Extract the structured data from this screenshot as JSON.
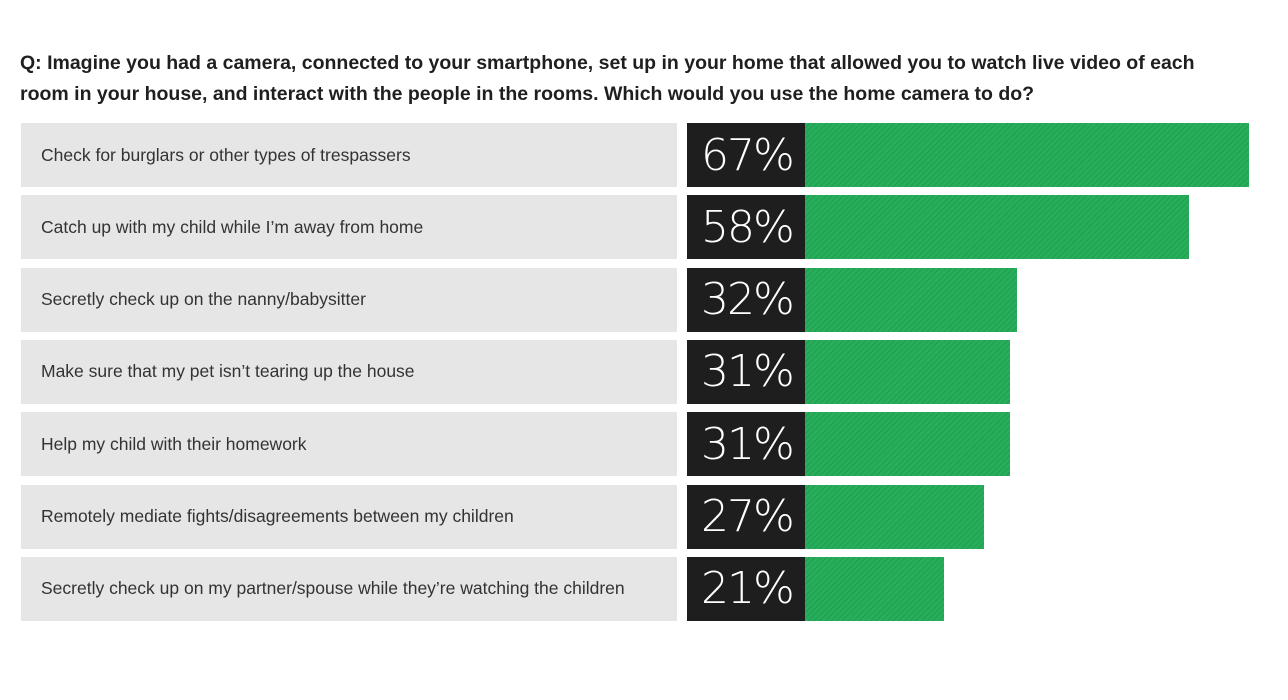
{
  "question": "Q: Imagine you had a camera, connected to your smartphone, set up in your home that allowed you to watch live video of each room in your house, and interact with the people in the rooms. Which would you use the home camera to do?",
  "colors": {
    "bar": "#27ae5a",
    "label_bg": "#e6e6e6",
    "pct_bg": "#1e1e1e"
  },
  "chart_data": {
    "type": "bar",
    "orientation": "horizontal",
    "title": "Q: Imagine you had a camera, connected to your smartphone, set up in your home that allowed you to watch live video of each room in your house, and interact with the people in the rooms. Which would you use the home camera to do?",
    "categories": [
      "Check for burglars or other types of trespassers",
      "Catch up with my child while I’m away from home",
      "Secretly check up on the nanny/babysitter",
      "Make sure that my pet isn’t tearing up the house",
      "Help my child with their homework",
      "Remotely mediate fights/disagreements between my children",
      "Secretly check up on my partner/spouse while they’re watching the children"
    ],
    "values": [
      67,
      58,
      32,
      31,
      31,
      27,
      21
    ],
    "value_labels": [
      "67%",
      "58%",
      "32%",
      "31%",
      "31%",
      "27%",
      "21%"
    ],
    "unit": "%",
    "xlim": [
      0,
      67
    ],
    "grid": false
  }
}
